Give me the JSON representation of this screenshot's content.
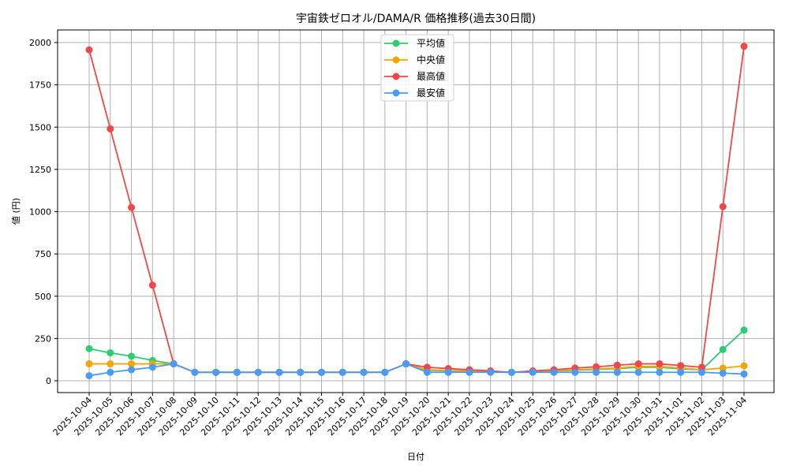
{
  "chart_data": {
    "type": "line",
    "title": "宇宙鉄ゼロオル/DAMA/R 価格推移(過去30日間)",
    "xlabel": "日付",
    "ylabel": "値 (円)",
    "ylim": [
      -60,
      2070
    ],
    "yticks": [
      0,
      250,
      500,
      750,
      1000,
      1250,
      1500,
      1750,
      2000
    ],
    "grid": true,
    "legend_position": "upper center",
    "x": [
      "2025-10-04",
      "2025-10-05",
      "2025-10-06",
      "2025-10-07",
      "2025-10-08",
      "2025-10-09",
      "2025-10-10",
      "2025-10-11",
      "2025-10-12",
      "2025-10-13",
      "2025-10-14",
      "2025-10-15",
      "2025-10-16",
      "2025-10-17",
      "2025-10-18",
      "2025-10-19",
      "2025-10-20",
      "2025-10-21",
      "2025-10-22",
      "2025-10-23",
      "2025-10-24",
      "2025-10-25",
      "2025-10-26",
      "2025-10-27",
      "2025-10-28",
      "2025-10-29",
      "2025-10-30",
      "2025-10-31",
      "2025-11-01",
      "2025-11-02",
      "2025-11-03",
      "2025-11-04"
    ],
    "series": [
      {
        "name": "平均値",
        "color": "#2ecc71",
        "values": [
          190,
          165,
          145,
          120,
          100,
          50,
          50,
          50,
          50,
          50,
          50,
          50,
          50,
          50,
          50,
          100,
          62,
          58,
          55,
          52,
          50,
          53,
          58,
          62,
          67,
          72,
          80,
          80,
          70,
          65,
          185,
          300
        ]
      },
      {
        "name": "中央値",
        "color": "#f5a500",
        "values": [
          100,
          100,
          100,
          100,
          100,
          50,
          50,
          50,
          50,
          50,
          50,
          50,
          50,
          50,
          50,
          100,
          65,
          60,
          58,
          55,
          50,
          55,
          60,
          65,
          70,
          75,
          85,
          85,
          75,
          65,
          75,
          88
        ]
      },
      {
        "name": "最高値",
        "color": "#f04848",
        "values": [
          1957,
          1490,
          1025,
          565,
          100,
          50,
          50,
          50,
          50,
          50,
          50,
          50,
          50,
          50,
          50,
          100,
          80,
          72,
          65,
          58,
          50,
          58,
          65,
          75,
          82,
          92,
          100,
          100,
          90,
          80,
          1030,
          1978
        ]
      },
      {
        "name": "最安値",
        "color": "#4b9bf5",
        "values": [
          30,
          50,
          65,
          80,
          100,
          50,
          50,
          50,
          50,
          50,
          50,
          50,
          50,
          50,
          50,
          100,
          50,
          50,
          50,
          50,
          50,
          50,
          50,
          50,
          50,
          50,
          50,
          50,
          50,
          50,
          45,
          40
        ]
      }
    ]
  }
}
